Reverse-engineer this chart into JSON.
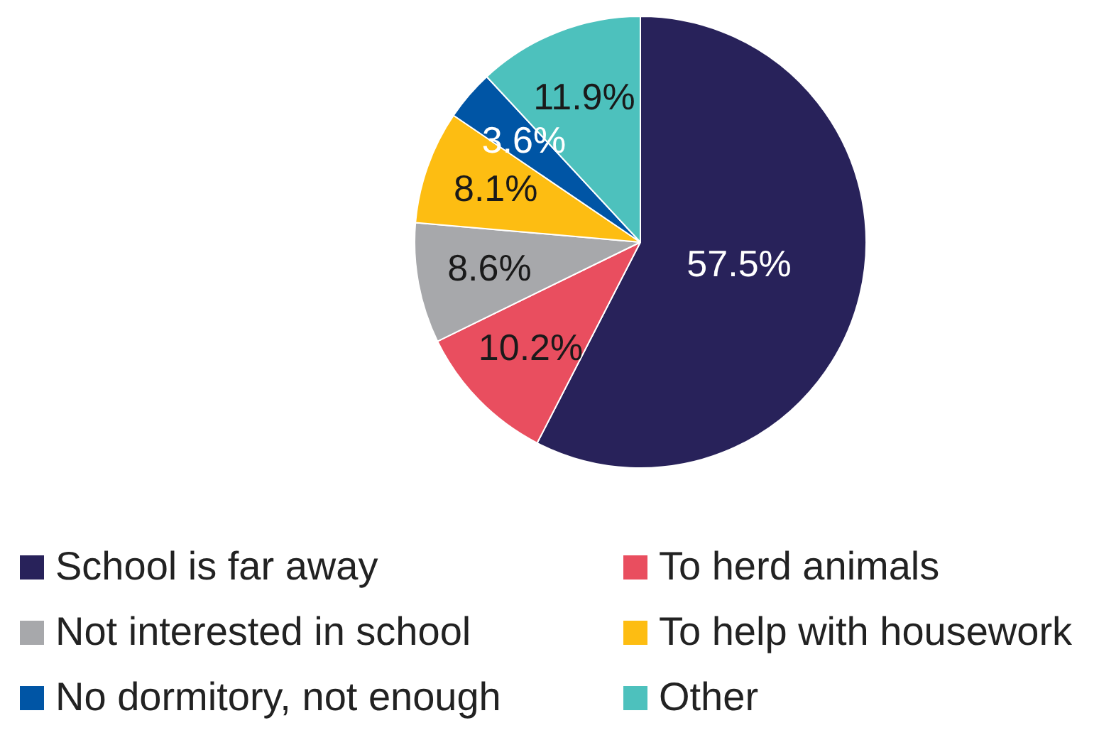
{
  "chart_data": {
    "type": "pie",
    "categories": [
      "School is far away",
      "To herd animals",
      "Not interested in school",
      "To help with housework",
      "No dormitory, not enough",
      "Other"
    ],
    "values": [
      57.5,
      10.2,
      8.6,
      8.1,
      3.6,
      11.9
    ],
    "colors": [
      "#28225a",
      "#e94e5f",
      "#a7a8ab",
      "#fdbd12",
      "#0055a5",
      "#4dc1bd"
    ],
    "value_labels": [
      "57.5%",
      "10.2%",
      "8.6%",
      "8.1%",
      "3.6%",
      "11.9%"
    ],
    "legend": "bottom"
  }
}
